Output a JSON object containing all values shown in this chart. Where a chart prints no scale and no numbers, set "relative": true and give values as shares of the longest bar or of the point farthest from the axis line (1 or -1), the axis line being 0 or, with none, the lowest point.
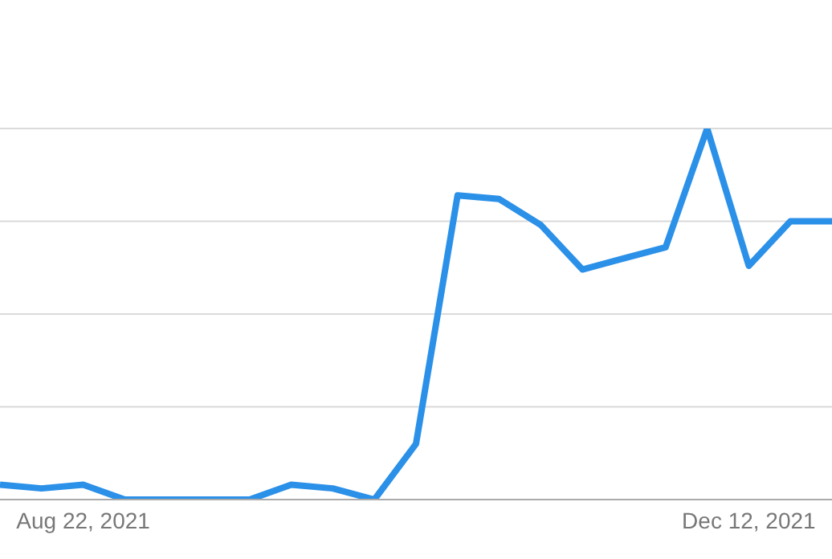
{
  "chart_data": {
    "type": "line",
    "relative": true,
    "grid": "y",
    "marker": "none",
    "line_style": "solid",
    "categories": [
      null,
      null,
      "Aug 22, 2021",
      null,
      null,
      null,
      null,
      null,
      null,
      null,
      null,
      null,
      null,
      null,
      null,
      null,
      null,
      null,
      "Dec 12, 2021",
      null,
      null
    ],
    "series": [
      {
        "color": "#2b90e8",
        "values": [
          0.04,
          0.03,
          0.04,
          0,
          0,
          0,
          0,
          0.04,
          0.03,
          0,
          0.15,
          0.82,
          0.81,
          0.74,
          0.62,
          0.65,
          0.68,
          1,
          0.63,
          0.75,
          0.75
        ]
      }
    ]
  }
}
